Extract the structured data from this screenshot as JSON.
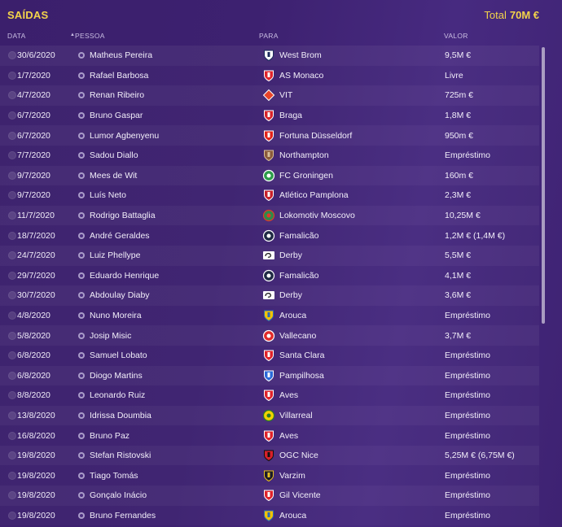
{
  "header": {
    "title": "SAÍDAS",
    "total_label": "Total",
    "total_value": "70M €"
  },
  "columns": {
    "date": "DATA",
    "person": "PESSOA",
    "to": "PARA",
    "value": "VALOR"
  },
  "rows": [
    {
      "date": "30/6/2020",
      "name": "Matheus Pereira",
      "club": "West Brom",
      "value": "9,5M €",
      "crest": "westbrom"
    },
    {
      "date": "1/7/2020",
      "name": "Rafael Barbosa",
      "club": "AS Monaco",
      "value": "Livre",
      "crest": "monaco"
    },
    {
      "date": "4/7/2020",
      "name": "Renan Ribeiro",
      "club": "VIT",
      "value": "725m €",
      "crest": "vit"
    },
    {
      "date": "6/7/2020",
      "name": "Bruno Gaspar",
      "club": "Braga",
      "value": "1,8M €",
      "crest": "braga"
    },
    {
      "date": "6/7/2020",
      "name": "Lumor Agbenyenu",
      "club": "Fortuna Düsseldorf",
      "value": "950m €",
      "crest": "fortuna"
    },
    {
      "date": "7/7/2020",
      "name": "Sadou Diallo",
      "club": "Northampton",
      "value": "Empréstimo",
      "crest": "northampton"
    },
    {
      "date": "9/7/2020",
      "name": "Mees de Wit",
      "club": "FC Groningen",
      "value": "160m €",
      "crest": "groningen"
    },
    {
      "date": "9/7/2020",
      "name": "Luís Neto",
      "club": "Atlético Pamplona",
      "value": "2,3M €",
      "crest": "pamplona"
    },
    {
      "date": "11/7/2020",
      "name": "Rodrigo Battaglia",
      "club": "Lokomotiv Moscovo",
      "value": "10,25M €",
      "crest": "lokomotiv"
    },
    {
      "date": "18/7/2020",
      "name": "André Geraldes",
      "club": "Famalicão",
      "value": "1,2M € (1,4M €)",
      "crest": "famalicao"
    },
    {
      "date": "24/7/2020",
      "name": "Luiz Phellype",
      "club": "Derby",
      "value": "5,5M €",
      "crest": "derby"
    },
    {
      "date": "29/7/2020",
      "name": "Eduardo Henrique",
      "club": "Famalicão",
      "value": "4,1M €",
      "crest": "famalicao"
    },
    {
      "date": "30/7/2020",
      "name": "Abdoulay Diaby",
      "club": "Derby",
      "value": "3,6M €",
      "crest": "derby"
    },
    {
      "date": "4/8/2020",
      "name": "Nuno Moreira",
      "club": "Arouca",
      "value": "Empréstimo",
      "crest": "arouca"
    },
    {
      "date": "5/8/2020",
      "name": "Josip Misic",
      "club": "Vallecano",
      "value": "3,7M €",
      "crest": "vallecano"
    },
    {
      "date": "6/8/2020",
      "name": "Samuel Lobato",
      "club": "Santa Clara",
      "value": "Empréstimo",
      "crest": "santaclara"
    },
    {
      "date": "6/8/2020",
      "name": "Diogo Martins",
      "club": "Pampilhosa",
      "value": "Empréstimo",
      "crest": "pampilhosa"
    },
    {
      "date": "8/8/2020",
      "name": "Leonardo Ruiz",
      "club": "Aves",
      "value": "Empréstimo",
      "crest": "aves"
    },
    {
      "date": "13/8/2020",
      "name": "Idrissa Doumbia",
      "club": "Villarreal",
      "value": "Empréstimo",
      "crest": "villarreal"
    },
    {
      "date": "16/8/2020",
      "name": "Bruno Paz",
      "club": "Aves",
      "value": "Empréstimo",
      "crest": "aves"
    },
    {
      "date": "19/8/2020",
      "name": "Stefan Ristovski",
      "club": "OGC Nice",
      "value": "5,25M € (6,75M €)",
      "crest": "nice"
    },
    {
      "date": "19/8/2020",
      "name": "Tiago Tomás",
      "club": "Varzim",
      "value": "Empréstimo",
      "crest": "varzim"
    },
    {
      "date": "19/8/2020",
      "name": "Gonçalo Inácio",
      "club": "Gil Vicente",
      "value": "Empréstimo",
      "crest": "gilvicente"
    },
    {
      "date": "19/8/2020",
      "name": "Bruno Fernandes",
      "club": "Arouca",
      "value": "Empréstimo",
      "crest": "arouca"
    }
  ],
  "crest_colors": {
    "westbrom": [
      "#ffffff",
      "#1b2a5c"
    ],
    "monaco": [
      "#e0242c",
      "#ffffff"
    ],
    "vit": [
      "#e8452a",
      "#ffffff"
    ],
    "braga": [
      "#d8232a",
      "#ffffff"
    ],
    "fortuna": [
      "#e2231a",
      "#ffffff"
    ],
    "northampton": [
      "#8a5a3a",
      "#d8c09a"
    ],
    "groningen": [
      "#2d9c4a",
      "#ffffff"
    ],
    "pamplona": [
      "#c8202a",
      "#ffffff"
    ],
    "lokomotiv": [
      "#2e8b4a",
      "#e03a2a"
    ],
    "famalicao": [
      "#1f2a44",
      "#ffffff"
    ],
    "derby": [
      "#ffffff",
      "#111111"
    ],
    "arouca": [
      "#f2c200",
      "#2a6ab8"
    ],
    "vallecano": [
      "#e02a2a",
      "#ffffff"
    ],
    "santaclara": [
      "#e0222a",
      "#ffffff"
    ],
    "pampilhosa": [
      "#2a6ad8",
      "#ffffff"
    ],
    "aves": [
      "#e0222a",
      "#ffffff"
    ],
    "villarreal": [
      "#f2d200",
      "#2a7a2a"
    ],
    "nice": [
      "#d8202a",
      "#111111"
    ],
    "varzim": [
      "#1a1a2a",
      "#e8c020"
    ],
    "gilvicente": [
      "#e0222a",
      "#ffffff"
    ]
  }
}
